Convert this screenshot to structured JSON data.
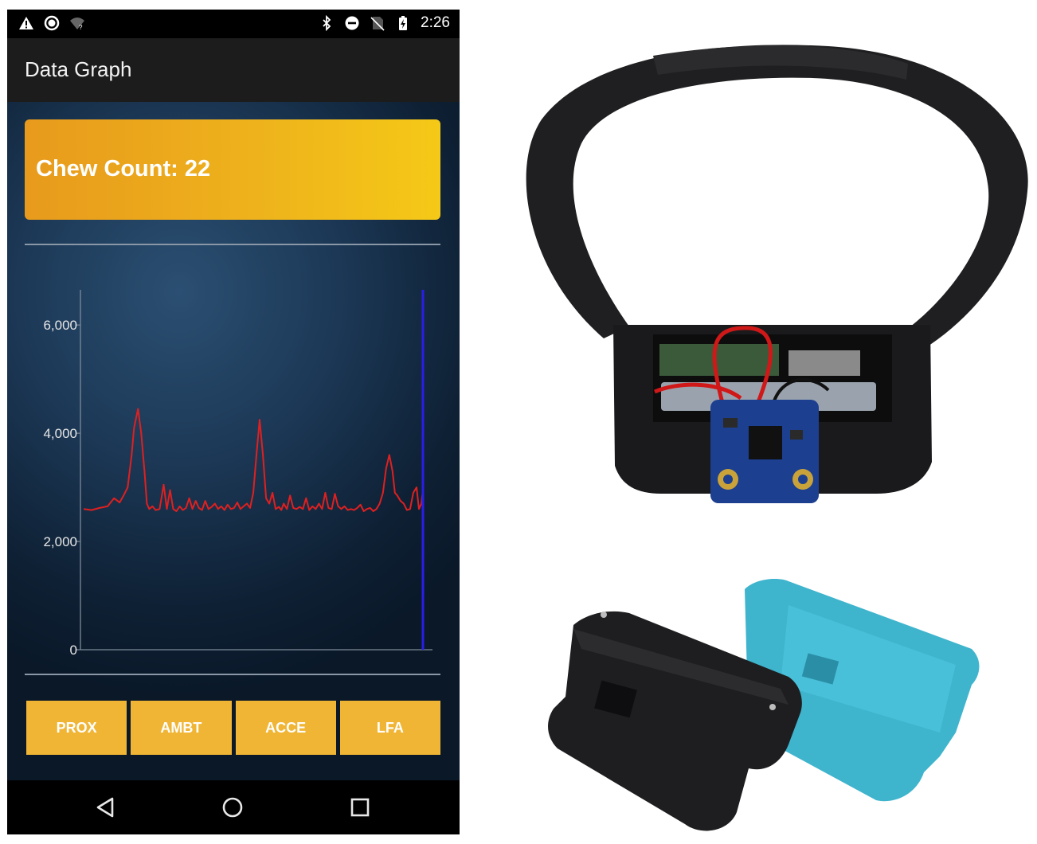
{
  "status_bar": {
    "time": "2:26",
    "left_icons": [
      "warning-icon",
      "circle-icon",
      "wifi-icon"
    ],
    "right_icons": [
      "bluetooth-icon",
      "do-not-disturb-icon",
      "no-sim-icon",
      "battery-charging-icon"
    ]
  },
  "app_bar": {
    "title": "Data Graph"
  },
  "chew_card": {
    "text": "Chew Count: 22",
    "gradient": [
      "#e89a1c",
      "#f5c917"
    ]
  },
  "chart_data": {
    "type": "line",
    "title": "",
    "xlabel": "",
    "ylabel": "",
    "ylim": [
      0,
      6650
    ],
    "yticks": [
      0,
      2000,
      4000,
      6000
    ],
    "ytick_labels": [
      "0",
      "2,000",
      "4,000",
      "6,000"
    ],
    "grid": false,
    "series": [
      {
        "color": "#e02020",
        "x": [
          0,
          10,
          20,
          30,
          38,
          45,
          50,
          55,
          60,
          63,
          68,
          72,
          76,
          79,
          82,
          86,
          90,
          95,
          100,
          104,
          108,
          112,
          116,
          120,
          124,
          128,
          132,
          136,
          140,
          144,
          148,
          152,
          156,
          160,
          164,
          168,
          172,
          176,
          180,
          184,
          188,
          192,
          196,
          200,
          204,
          208,
          212,
          216,
          220,
          224,
          228,
          232,
          236,
          240,
          244,
          247,
          250,
          254,
          258,
          262,
          266,
          270,
          274,
          278,
          282,
          286,
          290,
          294,
          298,
          302,
          306,
          310,
          314,
          318,
          322,
          326,
          330,
          334,
          338,
          342,
          346,
          350,
          354,
          358,
          362,
          366,
          370,
          374,
          378,
          382,
          386,
          389,
          392,
          396,
          400,
          404,
          408,
          412,
          416,
          419,
          422,
          424
        ],
        "values": [
          2600,
          2580,
          2620,
          2650,
          2800,
          2720,
          2850,
          3000,
          3600,
          4100,
          4450,
          4000,
          3300,
          2700,
          2600,
          2650,
          2580,
          2600,
          3050,
          2600,
          2950,
          2600,
          2560,
          2650,
          2580,
          2620,
          2800,
          2600,
          2750,
          2620,
          2580,
          2750,
          2600,
          2640,
          2700,
          2600,
          2650,
          2580,
          2680,
          2600,
          2620,
          2720,
          2600,
          2650,
          2700,
          2620,
          2900,
          3600,
          4250,
          3600,
          2800,
          2700,
          2900,
          2600,
          2640,
          2580,
          2700,
          2600,
          2850,
          2620,
          2600,
          2640,
          2600,
          2800,
          2580,
          2650,
          2600,
          2700,
          2600,
          2900,
          2620,
          2600,
          2880,
          2650,
          2600,
          2650,
          2580,
          2600,
          2580,
          2620,
          2680,
          2560,
          2600,
          2620,
          2560,
          2600,
          2700,
          2900,
          3350,
          3600,
          3300,
          2900,
          2850,
          2750,
          2700,
          2580,
          2600,
          2900,
          3000,
          2600,
          2700,
          2950
        ]
      }
    ],
    "cursor_color": "#2a1ee8"
  },
  "buttons": [
    {
      "label": "PROX"
    },
    {
      "label": "AMBT"
    },
    {
      "label": "ACCE"
    },
    {
      "label": "LFA"
    }
  ],
  "nav_bar": {
    "icons": [
      "back-icon",
      "home-icon",
      "recents-icon"
    ]
  },
  "colors": {
    "button": "#f0b534",
    "app_bar": "#1c1c1c",
    "line": "#e02020",
    "cursor": "#2a1ee8",
    "housing_black": "#1e1e20",
    "housing_teal": "#3fb4cd",
    "pcb": "#1c3f8f"
  }
}
